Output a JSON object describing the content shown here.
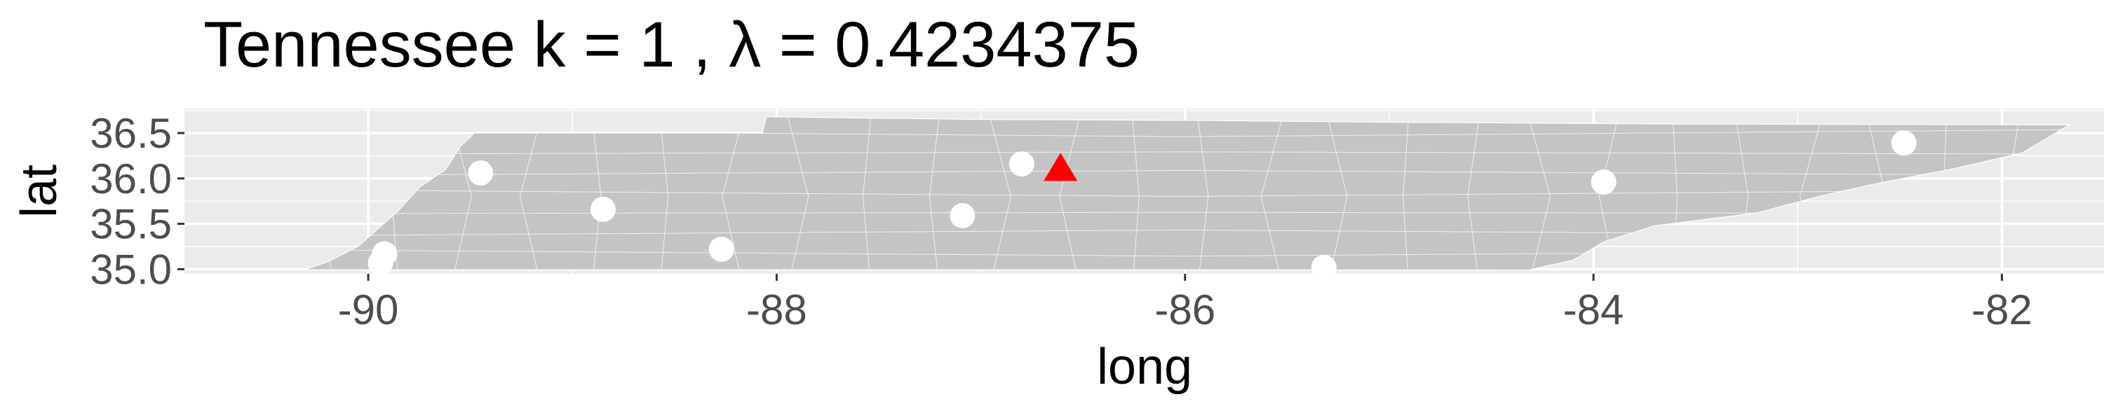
{
  "colors": {
    "panel_background": "#ebebeb",
    "major_grid": "#ffffff",
    "state_fill": "#c4c4c4",
    "county_border": "#ffffff",
    "site_point": "#ffffff",
    "center_point": "#ff0000"
  },
  "chart_data": {
    "type": "scatter",
    "title": "Tennessee  k =  1 ,  λ  =  0.4234375",
    "xlabel": "long",
    "ylabel": "lat",
    "xlim": [
      -90.9,
      -81.5
    ],
    "ylim": [
      34.95,
      36.77
    ],
    "xticks": [
      -90,
      -88,
      -86,
      -84,
      -82
    ],
    "xtick_labels": [
      "-90",
      "-88",
      "-86",
      "-84",
      "-82"
    ],
    "yticks": [
      35.0,
      35.5,
      36.0,
      36.5
    ],
    "ytick_labels": [
      "35.0",
      "35.5",
      "36.0",
      "36.5"
    ],
    "grid": true,
    "background_layer": "Tennessee county polygons",
    "series": [
      {
        "marker": "circle",
        "color": "#ffffff",
        "points": [
          {
            "long": -89.45,
            "lat": 36.06
          },
          {
            "long": -88.85,
            "lat": 35.66
          },
          {
            "long": -89.92,
            "lat": 35.17
          },
          {
            "long": -89.94,
            "lat": 35.07
          },
          {
            "long": -88.27,
            "lat": 35.22
          },
          {
            "long": -87.09,
            "lat": 35.59
          },
          {
            "long": -86.8,
            "lat": 36.16
          },
          {
            "long": -85.32,
            "lat": 35.02
          },
          {
            "long": -83.95,
            "lat": 35.96
          },
          {
            "long": -82.48,
            "lat": 36.39
          }
        ]
      },
      {
        "marker": "triangle",
        "color": "#ff0000",
        "points": [
          {
            "long": -86.61,
            "lat": 36.09
          }
        ]
      }
    ]
  }
}
